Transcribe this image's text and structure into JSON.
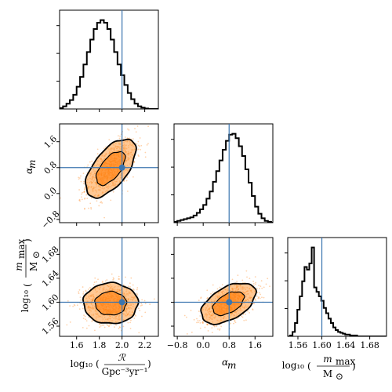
{
  "chart_data": {
    "type": "corner",
    "parameters": [
      {
        "key": "logR",
        "label_parts": [
          "log₁₀",
          "(",
          "ℛ",
          "Gpc⁻³yr⁻¹",
          ")"
        ],
        "range": [
          1.45,
          2.32
        ],
        "ticks": [
          1.6,
          1.8,
          2.0,
          2.2
        ],
        "tick_labels": [
          "1.6",
          "1.8",
          "2.0",
          "2.2"
        ],
        "truth": 2.0
      },
      {
        "key": "alpha",
        "label_parts": [
          "α",
          "m"
        ],
        "range": [
          -0.9,
          2.15
        ],
        "ticks": [
          -0.8,
          0.0,
          0.8,
          1.6
        ],
        "tick_labels": [
          "−0.8",
          "0.0",
          "0.8",
          "1.6"
        ],
        "truth": 0.8
      },
      {
        "key": "logm",
        "label_parts": [
          "log₁₀",
          "(",
          "m",
          "max",
          "M",
          "⊙",
          ")"
        ],
        "range": [
          1.543,
          1.708
        ],
        "ticks": [
          1.56,
          1.6,
          1.64,
          1.68
        ],
        "tick_labels": [
          "1.56",
          "1.60",
          "1.64",
          "1.68"
        ],
        "truth": 1.6
      }
    ],
    "diagonal_histograms": [
      {
        "param": "logR",
        "bin_edges_start": 1.45,
        "bin_width": 0.03,
        "counts": [
          0.01,
          0.03,
          0.06,
          0.1,
          0.16,
          0.25,
          0.36,
          0.5,
          0.64,
          0.78,
          0.9,
          0.97,
          1.0,
          0.97,
          0.9,
          0.78,
          0.64,
          0.5,
          0.38,
          0.27,
          0.18,
          0.11,
          0.06,
          0.03,
          0.015,
          0.005,
          0.0,
          0.0,
          0.0
        ]
      },
      {
        "param": "alpha",
        "bin_edges_start": -0.9,
        "bin_width": 0.1,
        "counts": [
          0.01,
          0.02,
          0.03,
          0.04,
          0.05,
          0.06,
          0.08,
          0.11,
          0.15,
          0.2,
          0.27,
          0.35,
          0.46,
          0.58,
          0.7,
          0.82,
          0.92,
          0.99,
          1.0,
          0.95,
          0.86,
          0.75,
          0.6,
          0.45,
          0.3,
          0.18,
          0.1,
          0.05,
          0.02,
          0.01,
          0.0
        ]
      },
      {
        "param": "logm",
        "bin_edges_start": 1.543,
        "bin_width": 0.004,
        "counts": [
          0.0,
          0.01,
          0.05,
          0.15,
          0.3,
          0.45,
          0.62,
          0.78,
          0.75,
          0.82,
          1.0,
          0.55,
          0.5,
          0.45,
          0.4,
          0.32,
          0.26,
          0.2,
          0.15,
          0.1,
          0.07,
          0.05,
          0.04,
          0.03,
          0.02,
          0.02,
          0.01,
          0.01,
          0.01,
          0.0,
          0.0,
          0.0,
          0.0,
          0.0,
          0.0,
          0.0,
          0.0,
          0.0,
          0.0,
          0.0,
          0.0
        ]
      }
    ],
    "pair_panels": [
      {
        "x": "logR",
        "y": "alpha",
        "center": [
          1.9,
          0.78
        ],
        "sd": [
          0.11,
          0.45
        ],
        "corr": 0.6
      },
      {
        "x": "logR",
        "y": "logm",
        "center": [
          1.9,
          1.598
        ],
        "sd": [
          0.12,
          0.017
        ],
        "corr": 0.0
      },
      {
        "x": "alpha",
        "y": "logm",
        "center": [
          0.78,
          1.598
        ],
        "sd": [
          0.42,
          0.017
        ],
        "corr": 0.5
      }
    ],
    "truth_values": {
      "logR": 2.0,
      "alpha": 0.8,
      "logm": 1.6
    },
    "colors": {
      "samples": "#ff7f0e",
      "truth": "#3b75af",
      "histogram": "#000000"
    }
  }
}
